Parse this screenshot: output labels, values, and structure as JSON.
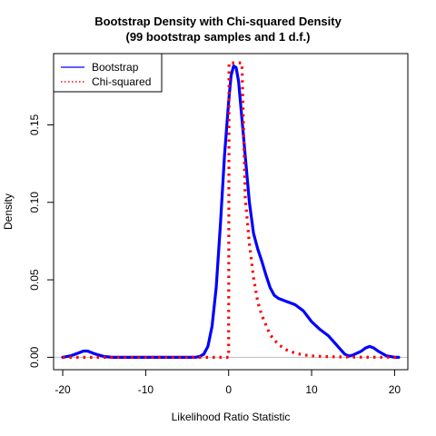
{
  "chart_data": {
    "type": "line",
    "title": "Bootstrap Density with Chi-squared Density",
    "subtitle": "(99 bootstrap samples and 1 d.f.)",
    "xlabel": "Likelihood Ratio Statistic",
    "ylabel": "Density",
    "xlim": [
      -21.1,
      21.6
    ],
    "ylim": [
      -0.008,
      0.196
    ],
    "x_ticks": [
      -20,
      -10,
      0,
      10,
      20
    ],
    "x_tick_labels": [
      "-20",
      "-10",
      "0",
      "10",
      "20"
    ],
    "y_ticks": [
      0.0,
      0.05,
      0.1,
      0.15
    ],
    "y_tick_labels": [
      "0.00",
      "0.05",
      "0.10",
      "0.15"
    ],
    "grid": false,
    "legend_position": "top-left",
    "legend": [
      {
        "label": "Bootstrap",
        "color": "#0000ff",
        "style": "solid"
      },
      {
        "label": "Chi-squared",
        "color": "#ff0000",
        "style": "dotted"
      }
    ],
    "reference_line": {
      "y": 0,
      "color": "#bebebe"
    },
    "series": [
      {
        "name": "Bootstrap",
        "color": "#0000ff",
        "style": "solid",
        "x": [
          -20,
          -19,
          -18,
          -17.5,
          -17,
          -16.5,
          -16,
          -15,
          -14,
          -12,
          -10,
          -8,
          -6,
          -5,
          -4,
          -3.5,
          -3,
          -2.5,
          -2,
          -1.5,
          -1,
          -0.5,
          0,
          0.3,
          0.6,
          0.9,
          1.2,
          1.5,
          2,
          2.5,
          3,
          3.5,
          4,
          4.5,
          5,
          5.5,
          6,
          7,
          8,
          9,
          10,
          11,
          12,
          12.5,
          13,
          14,
          14.5,
          15,
          16,
          16.5,
          17,
          17.5,
          18,
          19,
          20,
          20.5
        ],
        "y": [
          0,
          0.001,
          0.003,
          0.004,
          0.004,
          0.003,
          0.002,
          0.0005,
          0,
          0,
          0,
          0,
          0,
          0,
          0,
          0.0005,
          0.002,
          0.007,
          0.02,
          0.045,
          0.085,
          0.13,
          0.165,
          0.182,
          0.188,
          0.187,
          0.178,
          0.16,
          0.13,
          0.1,
          0.08,
          0.07,
          0.062,
          0.053,
          0.045,
          0.04,
          0.038,
          0.036,
          0.034,
          0.03,
          0.023,
          0.018,
          0.014,
          0.011,
          0.008,
          0.002,
          0.0008,
          0.0015,
          0.004,
          0.006,
          0.007,
          0.006,
          0.004,
          0.001,
          0,
          0
        ]
      },
      {
        "name": "Chi-squared",
        "color": "#ff0000",
        "style": "dotted",
        "x": [
          -20,
          -10,
          -1,
          -0.2,
          0,
          0.05,
          0.08,
          0.1,
          0.2,
          0.3,
          0.5,
          0.7,
          1,
          1.3,
          1.6,
          2,
          2.5,
          3,
          3.5,
          4,
          5,
          6,
          7,
          8,
          9,
          10,
          12,
          15,
          20,
          20.5
        ],
        "y": [
          0,
          0,
          0,
          0,
          0,
          0.19,
          0.19,
          0.19,
          0.19,
          0.19,
          0.19,
          0.19,
          0.19,
          0.19,
          0.19,
          0.103,
          0.0732,
          0.0514,
          0.0359,
          0.027,
          0.0146,
          0.0082,
          0.0047,
          0.0027,
          0.0016,
          0.0009,
          0.0004,
          0.0001,
          0,
          0
        ]
      }
    ]
  }
}
